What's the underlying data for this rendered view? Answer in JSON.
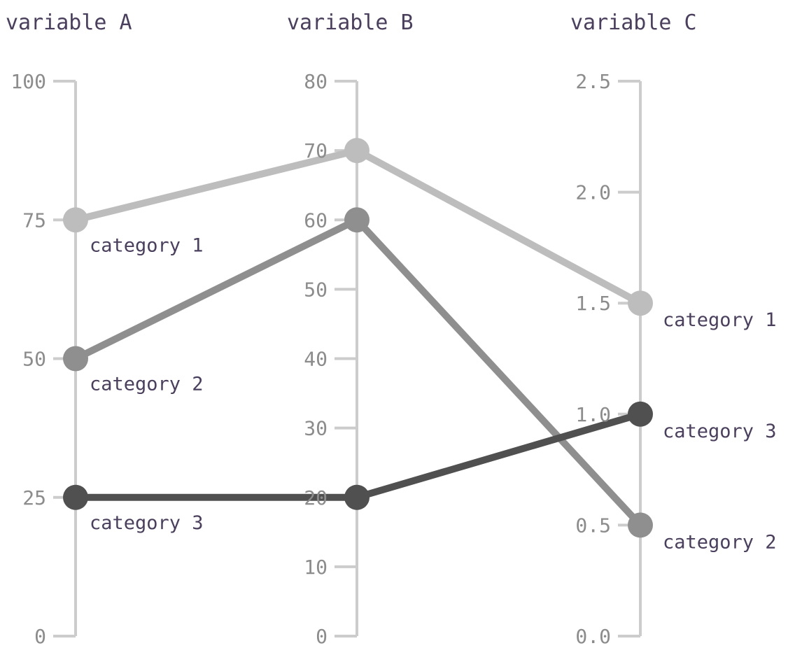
{
  "chart_data": {
    "type": "line",
    "subtype": "parallel-coordinates",
    "title": "",
    "axes": [
      {
        "name": "variable A",
        "ylim": [
          0,
          100
        ],
        "ticks": [
          0,
          25,
          50,
          75,
          100
        ],
        "tick_labels": [
          "0",
          "25",
          "50",
          "75",
          "100"
        ]
      },
      {
        "name": "variable B",
        "ylim": [
          0,
          80
        ],
        "ticks": [
          0,
          10,
          20,
          30,
          40,
          50,
          60,
          70,
          80
        ],
        "tick_labels": [
          "0",
          "10",
          "20",
          "30",
          "40",
          "50",
          "60",
          "70",
          "80"
        ]
      },
      {
        "name": "variable C",
        "ylim": [
          0,
          2.5
        ],
        "ticks": [
          0,
          0.5,
          1.0,
          1.5,
          2.0,
          2.5
        ],
        "tick_labels": [
          "0.0",
          "0.5",
          "1.0",
          "1.5",
          "2.0",
          "2.5"
        ]
      }
    ],
    "series": [
      {
        "name": "category 1",
        "values": [
          75,
          70,
          1.5
        ],
        "color": "#bdbdbd"
      },
      {
        "name": "category 2",
        "values": [
          50,
          60,
          0.5
        ],
        "color": "#8f8f8f"
      },
      {
        "name": "category 3",
        "values": [
          25,
          20,
          1.0
        ],
        "color": "#505050"
      }
    ],
    "grid": false,
    "legend": "inline labels at first and last axis"
  }
}
